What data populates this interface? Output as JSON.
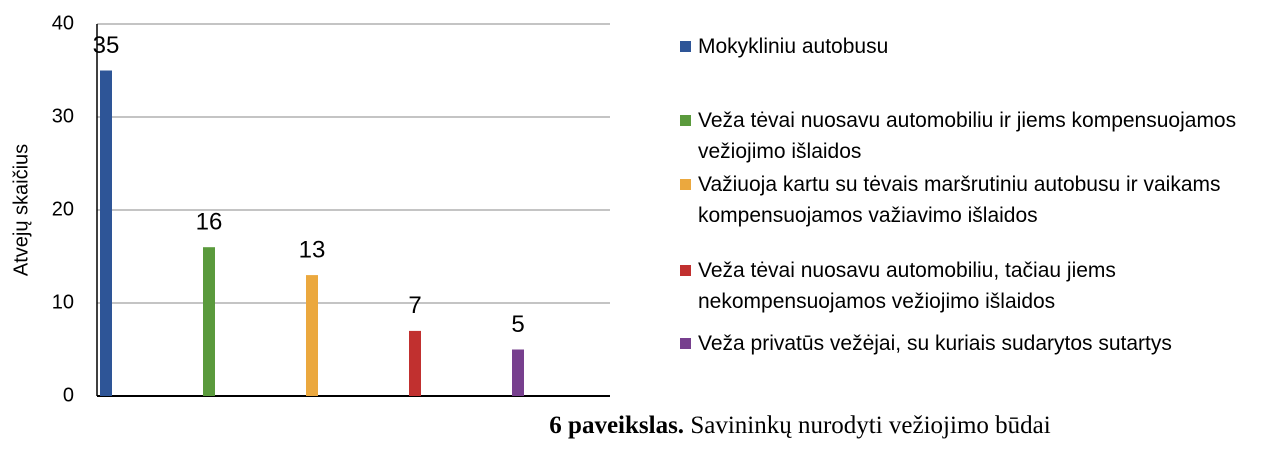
{
  "chart_data": {
    "type": "bar",
    "ylabel": "Atvejų skaičius",
    "categories": [
      null
    ],
    "series": [
      {
        "name": "Mokykliniu autobusu",
        "color": "#2e5597",
        "values": [
          35
        ]
      },
      {
        "name": "Veža tėvai nuosavu automobiliu ir jiems kompensuojamos vežiojimo išlaidos",
        "color": "#5a9a3c",
        "values": [
          16
        ]
      },
      {
        "name": "Važiuoja kartu su tėvais maršrutiniu autobusu ir vaikams kompensuojamos važiavimo išlaidos",
        "color": "#eba83e",
        "values": [
          13
        ]
      },
      {
        "name": "Veža tėvai nuosavu automobiliu, tačiau jiems nekompensuojamos vežiojimo išlaidos",
        "color": "#c1302f",
        "values": [
          7
        ]
      },
      {
        "name": "Veža privatūs vežėjai, su kuriais sudarytos sutartys",
        "color": "#773f8e",
        "values": [
          5
        ]
      }
    ],
    "ylim": [
      0,
      40
    ],
    "yticks": [
      0,
      10,
      20,
      30,
      40
    ],
    "grid": true,
    "legend": "right"
  },
  "caption": {
    "label": "6 paveikslas.",
    "text": "Savininkų nurodyti vežiojimo būdai"
  }
}
